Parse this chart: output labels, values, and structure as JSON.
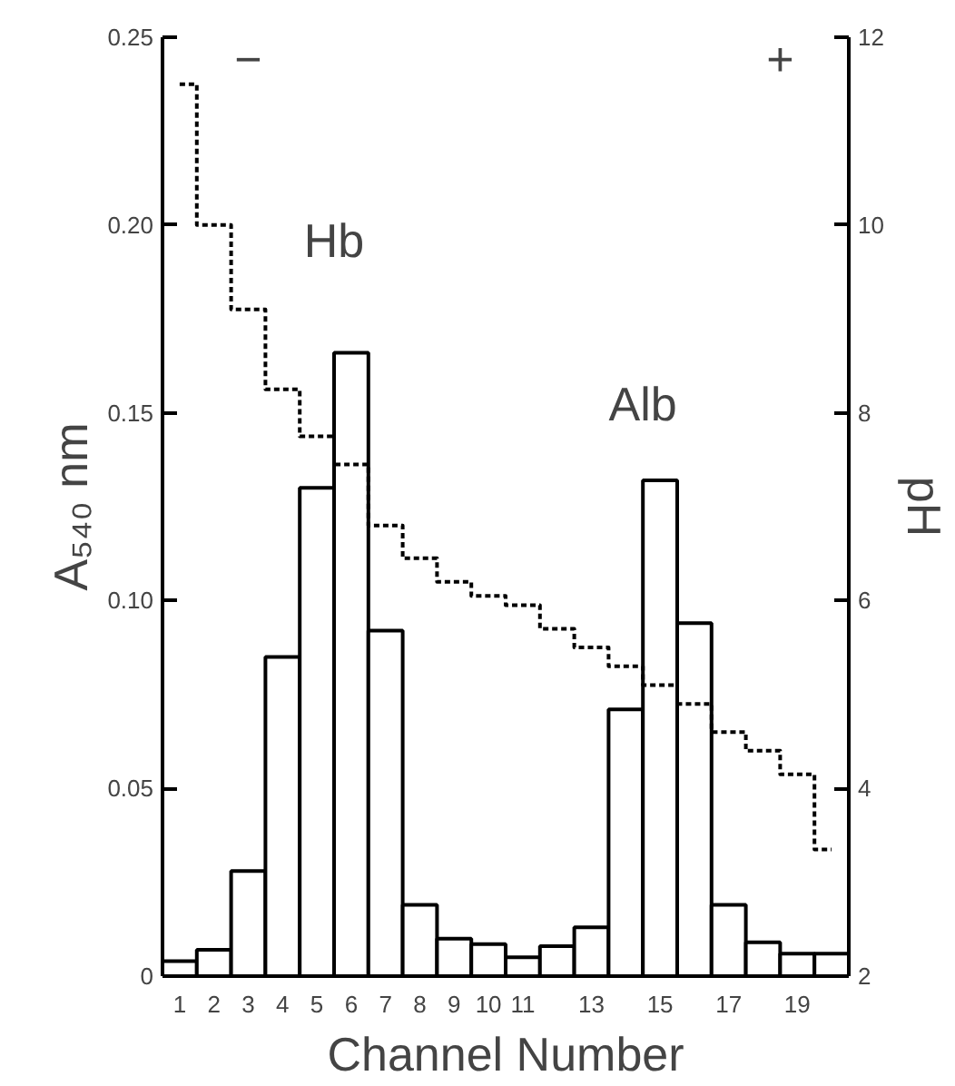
{
  "chart_data": {
    "type": "bar",
    "xlabel": "Channel Number",
    "ylabel": "A₅₄₀ nm",
    "y2label": "pH",
    "categories": [
      "1",
      "2",
      "3",
      "4",
      "5",
      "6",
      "7",
      "8",
      "9",
      "10",
      "11",
      null,
      "13",
      null,
      "15",
      null,
      "17",
      null,
      "19",
      null
    ],
    "series": [
      {
        "color": "#ffffff",
        "values": [
          0.004,
          0.007,
          0.028,
          0.085,
          0.13,
          0.166,
          0.092,
          0.019,
          0.01,
          0.0085,
          0.005,
          0.008,
          0.013,
          0.071,
          0.132,
          0.094,
          0.019,
          0.009,
          0.006,
          0.006
        ]
      },
      {
        "type": "step",
        "axis": "y2",
        "color": "#000000",
        "line_style": "dotted",
        "values": [
          11.5,
          10.0,
          9.1,
          8.25,
          7.75,
          7.45,
          6.8,
          6.45,
          6.2,
          6.05,
          5.95,
          5.7,
          5.5,
          5.3,
          5.1,
          4.9,
          4.6,
          4.4,
          4.15,
          3.35
        ]
      }
    ],
    "ylim": [
      0,
      0.25
    ],
    "yticks": [
      0,
      0.05,
      {
        "value": 0.1,
        "label": "0.10"
      },
      0.15,
      {
        "value": 0.2,
        "label": "0.20"
      },
      0.25
    ],
    "y2lim": [
      2,
      12
    ],
    "y2ticks": [
      2,
      4,
      6,
      8,
      10,
      12
    ],
    "annotations": [
      "Hb",
      "Alb",
      "−",
      "+"
    ],
    "grid": false
  }
}
